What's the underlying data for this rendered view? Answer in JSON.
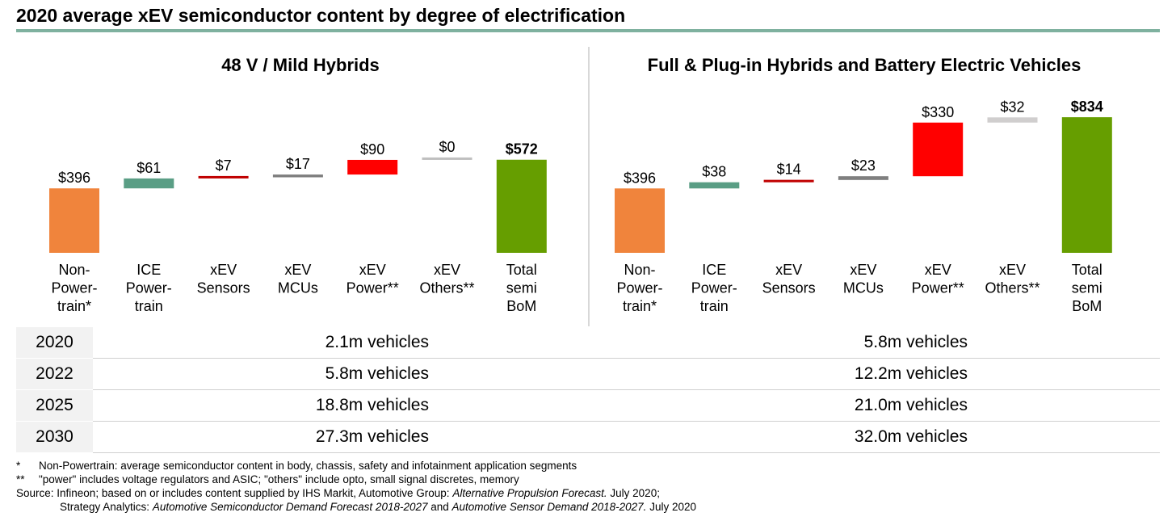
{
  "title": "2020 average xEV semiconductor content by degree of electrification",
  "colors": {
    "title_rule": "#7fb19f",
    "orange": "#f0843c",
    "teal": "#5a9e85",
    "red": "#c00000",
    "grey": "#7f7f7f",
    "bright_red": "#ff0000",
    "light_grey": "#d0cece",
    "green": "#669e00"
  },
  "chart_data": [
    {
      "type": "bar",
      "title": "48 V / Mild Hybrids",
      "subtype": "waterfall",
      "categories": [
        "Non-\nPower-\ntrain*",
        "ICE\nPower-\ntrain",
        "xEV\nSensors",
        "xEV\nMCUs",
        "xEV\nPower**",
        "xEV\nOthers**",
        "Total\nsemi\nBoM"
      ],
      "values": [
        396,
        61,
        7,
        17,
        90,
        0,
        572
      ],
      "labels": [
        "$396",
        "$61",
        "$7",
        "$17",
        "$90",
        "$0",
        "$572"
      ],
      "colors": [
        "#f0843c",
        "#5a9e85",
        "#c00000",
        "#7f7f7f",
        "#ff0000",
        "#bfbfbf",
        "#669e00"
      ],
      "total_index": 6
    },
    {
      "type": "bar",
      "title": "Full & Plug-in Hybrids and Battery Electric Vehicles",
      "subtype": "waterfall",
      "categories": [
        "Non-\nPower-\ntrain*",
        "ICE\nPower-\ntrain",
        "xEV\nSensors",
        "xEV\nMCUs",
        "xEV\nPower**",
        "xEV\nOthers**",
        "Total\nsemi\nBoM"
      ],
      "values": [
        396,
        38,
        14,
        23,
        330,
        32,
        834
      ],
      "labels": [
        "$396",
        "$38",
        "$14",
        "$23",
        "$330",
        "$32",
        "$834"
      ],
      "colors": [
        "#f0843c",
        "#5a9e85",
        "#c00000",
        "#7f7f7f",
        "#ff0000",
        "#d0cece",
        "#669e00"
      ],
      "total_index": 6
    }
  ],
  "volumes": [
    {
      "year": "2020",
      "mild": "2.1m vehicles",
      "full": "5.8m vehicles"
    },
    {
      "year": "2022",
      "mild": "5.8m vehicles",
      "full": "12.2m vehicles"
    },
    {
      "year": "2025",
      "mild": "18.8m vehicles",
      "full": "21.0m vehicles"
    },
    {
      "year": "2030",
      "mild": "27.3m vehicles",
      "full": "32.0m vehicles"
    }
  ],
  "notes": {
    "n1_mark": "*",
    "n1": "Non-Powertrain: average semiconductor content in body, chassis, safety and infotainment application segments",
    "n2_mark": "**",
    "n2": "\"power\" includes voltage regulators and ASIC; \"others\" include opto, small signal discretes, memory",
    "src_a": "Source: Infineon; based on or includes content supplied by IHS Markit, Automotive Group: ",
    "src_a_i": "Alternative Propulsion Forecast.",
    "src_a_end": " July 2020;",
    "src_b": "Strategy Analytics: ",
    "src_b_i1": "Automotive Semiconductor Demand Forecast 2018-2027",
    "src_b_mid": " and ",
    "src_b_i2": "Automotive Sensor Demand 2018-2027.",
    "src_b_end": " July 2020"
  }
}
